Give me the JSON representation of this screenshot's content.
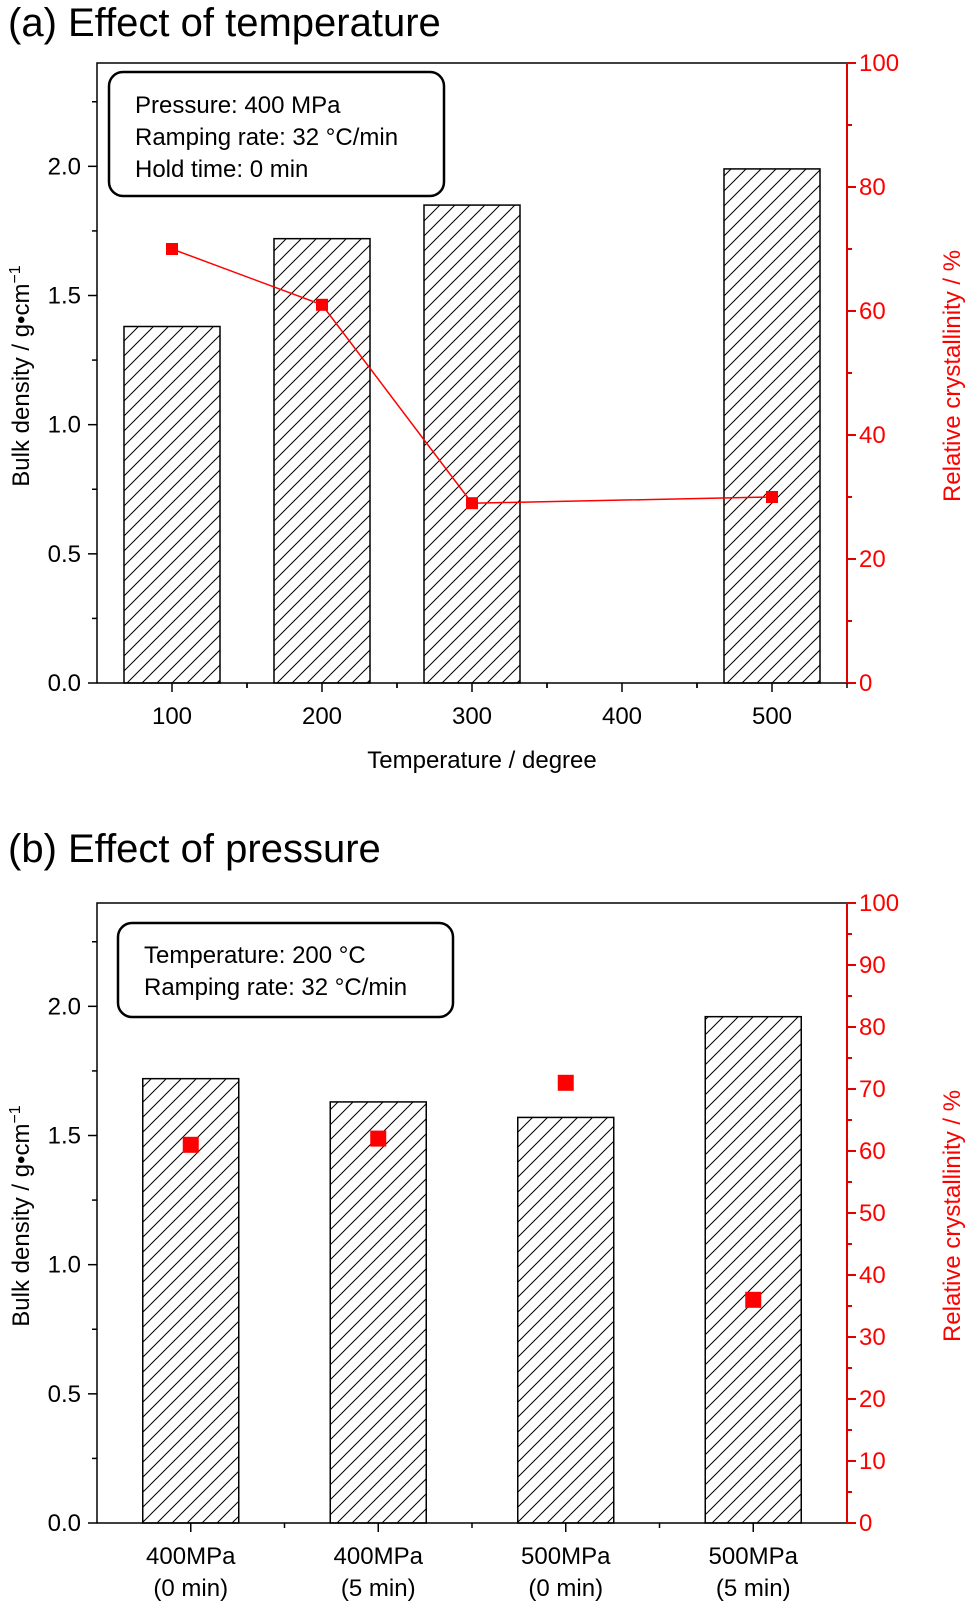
{
  "chart_data": [
    {
      "panel": "(a)",
      "title": "(a) Effect of temperature",
      "type": "bar",
      "xlabel": "Temperature / degree",
      "ylabel": "Bulk density / g•cm",
      "ylabel_sup": "−1",
      "y2label": "Relative crystallinity / %",
      "xlim": [
        50,
        550
      ],
      "xticks": [
        "100",
        "200",
        "300",
        "400",
        "500"
      ],
      "ylim": [
        0,
        2.4
      ],
      "yticks": [
        "0.0",
        "0.5",
        "1.0",
        "1.5",
        "2.0"
      ],
      "y2lim": [
        0,
        100
      ],
      "y2ticks": [
        "0",
        "20",
        "40",
        "60",
        "80",
        "100"
      ],
      "annotation": [
        "Pressure: 400 MPa",
        "Ramping rate: 32 °C/min",
        "Hold time: 0 min"
      ],
      "bars": {
        "name": "Bulk density",
        "x": [
          100,
          200,
          300,
          500
        ],
        "values": [
          1.38,
          1.72,
          1.85,
          1.99
        ]
      },
      "line": {
        "name": "Relative crystallinity",
        "axis": "right",
        "x": [
          100,
          200,
          300,
          500
        ],
        "values": [
          70,
          61,
          29,
          30
        ],
        "connected": true
      },
      "colors": {
        "crystallinity": "#ff0000",
        "bars": "#000000"
      },
      "grid": false
    },
    {
      "panel": "(b)",
      "title": "(b) Effect of pressure",
      "type": "bar",
      "xlabel": "",
      "ylabel": "Bulk density / g•cm",
      "ylabel_sup": "−1",
      "y2label": "Relative crystallinity / %",
      "categories": [
        [
          "400MPa",
          "(0 min)"
        ],
        [
          "400MPa",
          "(5 min)"
        ],
        [
          "500MPa",
          "(0 min)"
        ],
        [
          "500MPa",
          "(5 min)"
        ]
      ],
      "ylim": [
        0,
        2.4
      ],
      "yticks": [
        "0.0",
        "0.5",
        "1.0",
        "1.5",
        "2.0"
      ],
      "y2lim": [
        0,
        100
      ],
      "y2ticks": [
        "0",
        "10",
        "20",
        "30",
        "40",
        "50",
        "60",
        "70",
        "80",
        "90",
        "100"
      ],
      "annotation": [
        "Temperature: 200 °C",
        "Ramping rate: 32 °C/min"
      ],
      "bars": {
        "name": "Bulk density",
        "values": [
          1.72,
          1.63,
          1.57,
          1.96
        ]
      },
      "line": {
        "name": "Relative crystallinity",
        "axis": "right",
        "values": [
          61,
          62,
          71,
          36
        ],
        "connected": false
      },
      "colors": {
        "crystallinity": "#ff0000",
        "bars": "#000000"
      },
      "grid": false
    }
  ]
}
